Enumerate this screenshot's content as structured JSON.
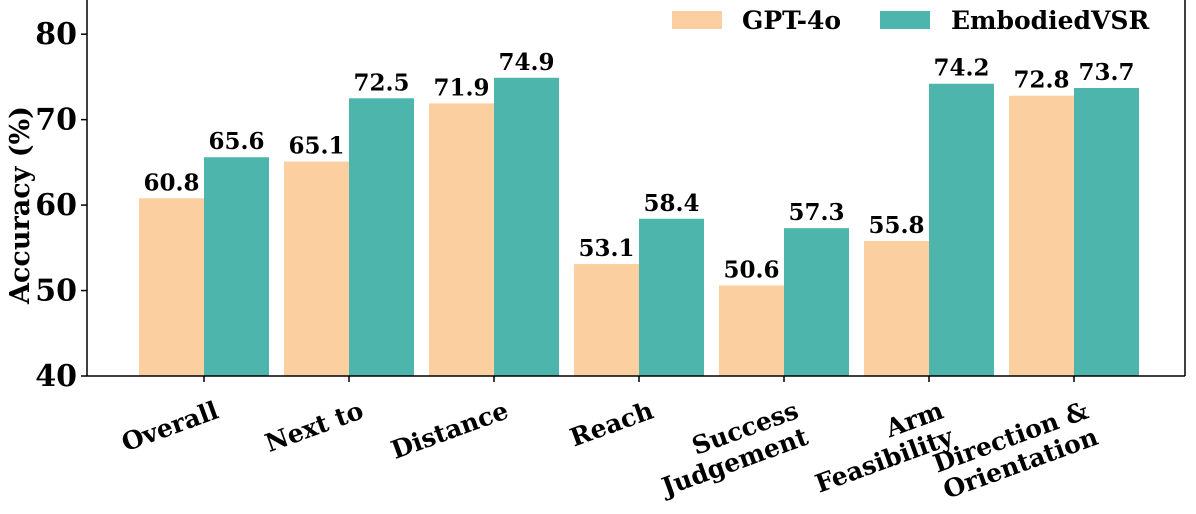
{
  "chart_data": {
    "type": "bar",
    "title": "",
    "xlabel": "",
    "ylabel": "Accuracy (%)",
    "ylim": [
      40,
      84
    ],
    "yticks": [
      40,
      50,
      60,
      70,
      80
    ],
    "grid": false,
    "legend_position": "top-right",
    "categories": [
      [
        "Overall"
      ],
      [
        "Next to"
      ],
      [
        "Distance"
      ],
      [
        "Reach"
      ],
      [
        "Success",
        "Judgement"
      ],
      [
        "Arm",
        "Feasibility"
      ],
      [
        "Direction &",
        "Orientation"
      ]
    ],
    "series": [
      {
        "name": "GPT-4o",
        "color": "#fbcfa0",
        "values": [
          60.8,
          65.1,
          71.9,
          53.1,
          50.6,
          55.8,
          72.8
        ]
      },
      {
        "name": "EmbodiedVSR",
        "color": "#4db5ac",
        "values": [
          65.6,
          72.5,
          74.9,
          58.4,
          57.3,
          74.2,
          73.7
        ]
      }
    ]
  }
}
